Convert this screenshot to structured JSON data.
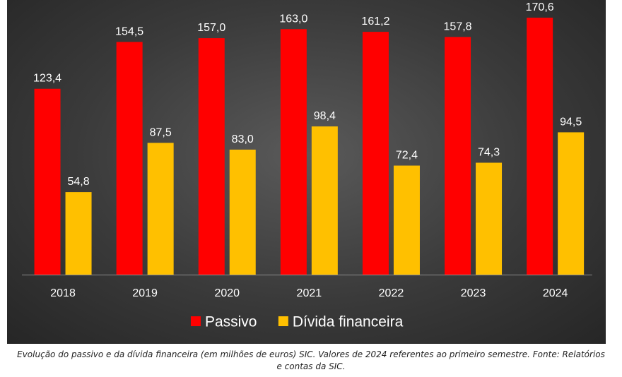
{
  "chart_data": {
    "type": "bar",
    "categories": [
      "2018",
      "2019",
      "2020",
      "2021",
      "2022",
      "2023",
      "2024"
    ],
    "series": [
      {
        "name": "Passivo",
        "color": "#ff0000",
        "values": [
          123.4,
          154.5,
          157.0,
          163.0,
          161.2,
          157.8,
          170.6
        ],
        "labels": [
          "123,4",
          "154,5",
          "157,0",
          "163,0",
          "161,2",
          "157,8",
          "170,6"
        ]
      },
      {
        "name": "Dívida financeira",
        "color": "#ffc000",
        "values": [
          54.8,
          87.5,
          83.0,
          98.4,
          72.4,
          74.3,
          94.5
        ],
        "labels": [
          "54,8",
          "87,5",
          "83,0",
          "98,4",
          "72,4",
          "74,3",
          "94,5"
        ]
      }
    ],
    "ylim": [
      0,
      180
    ],
    "grid": false,
    "legend_position": "bottom"
  },
  "caption": "Evolução do passivo e da dívida financeira (em milhões de euros) SIC. Valores de 2024 referentes ao primeiro semestre. Fonte: Relatórios e contas da SIC."
}
